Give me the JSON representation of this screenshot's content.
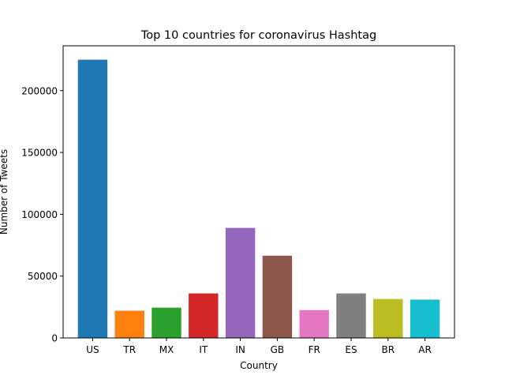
{
  "chart_data": {
    "type": "bar",
    "title": "Top 10 countries for coronavirus Hashtag",
    "xlabel": "Country",
    "ylabel": "Number of Tweets",
    "categories": [
      "US",
      "TR",
      "MX",
      "IT",
      "IN",
      "GB",
      "FR",
      "ES",
      "BR",
      "AR"
    ],
    "values": [
      225000,
      22000,
      24500,
      36000,
      89000,
      66500,
      22500,
      36000,
      31500,
      31000
    ],
    "colors": [
      "#1f77b4",
      "#ff7f0e",
      "#2ca02c",
      "#d62728",
      "#9467bd",
      "#8c564b",
      "#e377c2",
      "#7f7f7f",
      "#bcbd22",
      "#17becf"
    ],
    "yticks": [
      0,
      50000,
      100000,
      150000,
      200000
    ],
    "ylim": [
      0,
      236250
    ],
    "grid": false,
    "legend": "none"
  }
}
